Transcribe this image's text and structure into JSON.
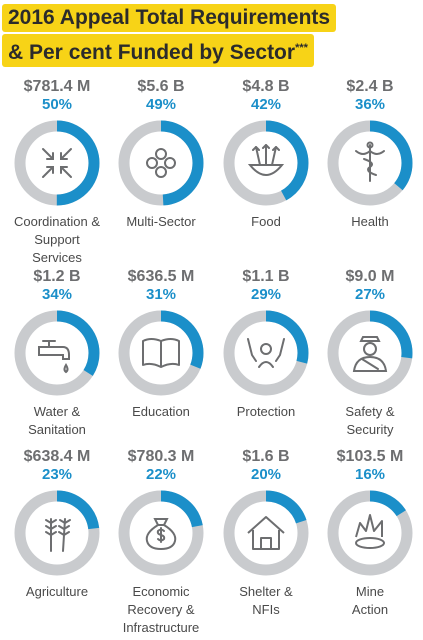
{
  "header": {
    "title_line1": "2016 Appeal Total Requirements",
    "title_line2": "& Per cent Funded by Sector",
    "title_mark": "***"
  },
  "colors": {
    "funded": "#1b8fc9",
    "unfunded": "#c9cbce",
    "icon": "#6d6e70",
    "title_bg": "#f7d317"
  },
  "chart_data": {
    "type": "donut",
    "title": "2016 Appeal Total Requirements & Per cent Funded by Sector",
    "sectors": [
      {
        "amount": "$781.4 M",
        "pct_label": "50%",
        "funded": 50,
        "label_lines": [
          "Coordination &",
          "Support",
          "Services"
        ],
        "icon": "arrows-inward-icon"
      },
      {
        "amount": "$5.6 B",
        "pct_label": "49%",
        "funded": 49,
        "label_lines": [
          "Multi-Sector"
        ],
        "icon": "circles-icon"
      },
      {
        "amount": "$4.8 B",
        "pct_label": "42%",
        "funded": 42,
        "label_lines": [
          "Food"
        ],
        "icon": "grain-bowl-icon"
      },
      {
        "amount": "$2.4 B",
        "pct_label": "36%",
        "funded": 36,
        "label_lines": [
          "Health"
        ],
        "icon": "caduceus-icon"
      },
      {
        "amount": "$1.2 B",
        "pct_label": "34%",
        "funded": 34,
        "label_lines": [
          "Water &",
          "Sanitation"
        ],
        "icon": "water-tap-icon"
      },
      {
        "amount": "$636.5 M",
        "pct_label": "31%",
        "funded": 31,
        "label_lines": [
          "Education"
        ],
        "icon": "open-book-icon"
      },
      {
        "amount": "$1.1 B",
        "pct_label": "29%",
        "funded": 29,
        "label_lines": [
          "Protection"
        ],
        "icon": "protected-person-icon"
      },
      {
        "amount": "$9.0 M",
        "pct_label": "27%",
        "funded": 27,
        "label_lines": [
          "Safety &",
          "Security"
        ],
        "icon": "guard-icon"
      },
      {
        "amount": "$638.4 M",
        "pct_label": "23%",
        "funded": 23,
        "label_lines": [
          "Agriculture"
        ],
        "icon": "wheat-icon"
      },
      {
        "amount": "$780.3 M",
        "pct_label": "22%",
        "funded": 22,
        "label_lines": [
          "Economic",
          "Recovery &",
          "Infrastructure"
        ],
        "icon": "money-bag-icon"
      },
      {
        "amount": "$1.6 B",
        "pct_label": "20%",
        "funded": 20,
        "label_lines": [
          "Shelter &",
          "NFIs"
        ],
        "icon": "house-icon"
      },
      {
        "amount": "$103.5 M",
        "pct_label": "16%",
        "funded": 16,
        "label_lines": [
          "Mine",
          "Action"
        ],
        "icon": "mine-explosion-icon"
      }
    ]
  }
}
